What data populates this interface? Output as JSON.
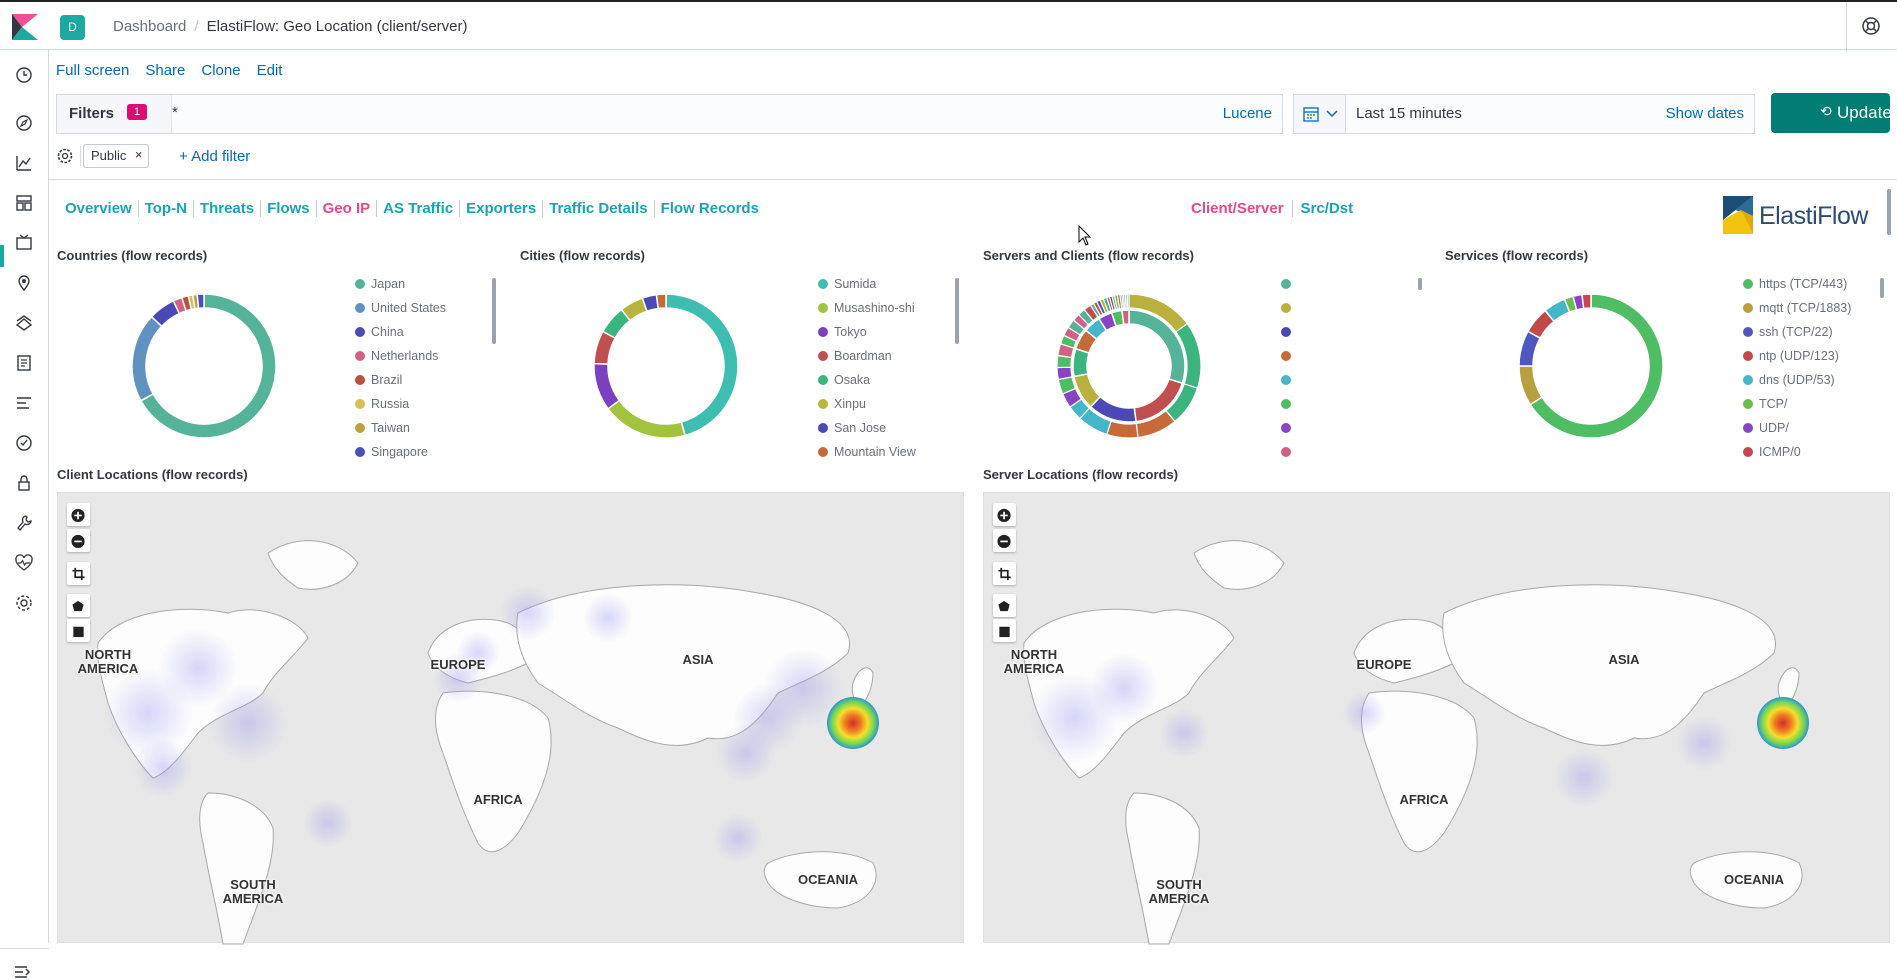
{
  "app": {
    "space_initial": "D"
  },
  "breadcrumb": {
    "parent": "Dashboard",
    "separator": "/",
    "current": "ElastiFlow: Geo Location (client/server)"
  },
  "top_actions": [
    "Full screen",
    "Share",
    "Clone",
    "Edit"
  ],
  "query": {
    "filters_label": "Filters",
    "filters_count": "1",
    "text": "*",
    "language": "Lucene"
  },
  "time": {
    "range": "Last 15 minutes",
    "show_dates": "Show dates"
  },
  "update_label": "Update",
  "filter_pill": {
    "label": "Public",
    "remove": "×"
  },
  "add_filter_label": "+ Add filter",
  "nav_tabs": [
    "Overview",
    "Top-N",
    "Threats",
    "Flows",
    "Geo IP",
    "AS Traffic",
    "Exporters",
    "Traffic Details",
    "Flow Records"
  ],
  "active_tab": "Geo IP",
  "view_tabs": [
    "Client/Server",
    "Src/Dst"
  ],
  "active_view": "Client/Server",
  "logo_text": "ElastiFlow",
  "panels": {
    "countries": {
      "title": "Countries (flow records)",
      "legend": [
        "Japan",
        "United States",
        "China",
        "Netherlands",
        "Brazil",
        "Russia",
        "Taiwan",
        "Singapore"
      ]
    },
    "cities": {
      "title": "Cities (flow records)",
      "legend": [
        "Sumida",
        "Musashino-shi",
        "Tokyo",
        "Boardman",
        "Osaka",
        "Xinpu",
        "San Jose",
        "Mountain View"
      ]
    },
    "servers_clients": {
      "title": "Servers and Clients (flow records)"
    },
    "services": {
      "title": "Services (flow records)",
      "legend": [
        "https (TCP/443)",
        "mqtt (TCP/1883)",
        "ssh (TCP/22)",
        "ntp (UDP/123)",
        "dns (UDP/53)",
        "TCP/",
        "UDP/",
        "ICMP/0"
      ]
    },
    "client_locations": {
      "title": "Client Locations (flow records)"
    },
    "server_locations": {
      "title": "Server Locations (flow records)"
    }
  },
  "map_regions": {
    "north_america": "NORTH AMERICA",
    "europe": "EUROPE",
    "asia": "ASIA",
    "africa": "AFRICA",
    "south_america": "SOUTH AMERICA",
    "oceania": "OCEANIA"
  },
  "colors": {
    "accent": "#1ba9a0",
    "link": "#006bb4",
    "active_tab": "#e8478b",
    "tab": "#17a5b0",
    "update_button": "#017d73",
    "badge": "#dd0a73",
    "legend_palette": [
      "#54b399",
      "#6092c0",
      "#4c49b6",
      "#d36086",
      "#bd4f3d",
      "#d6bf57",
      "#b9a440",
      "#4a4fb9"
    ],
    "city_palette": [
      "#3ebeb0",
      "#a3c33e",
      "#7b40c0",
      "#c05050",
      "#3ab580",
      "#b7b53e",
      "#4c49b6",
      "#c76a3a"
    ],
    "service_palette": [
      "#4ebd63",
      "#b9a03e",
      "#4e58c0",
      "#c04a46",
      "#43b6c7",
      "#6dbb48",
      "#8744c7",
      "#c74453"
    ]
  },
  "chart_data": [
    {
      "type": "pie",
      "title": "Countries (flow records)",
      "categories": [
        "Japan",
        "United States",
        "China",
        "Netherlands",
        "Brazil",
        "Russia",
        "Taiwan",
        "Singapore"
      ],
      "values": [
        67,
        20,
        6,
        2,
        1.5,
        1,
        1,
        1.5
      ]
    },
    {
      "type": "pie",
      "title": "Cities (flow records)",
      "categories": [
        "Sumida",
        "Musashino-shi",
        "Tokyo",
        "Boardman",
        "Osaka",
        "Xinpu",
        "San Jose",
        "Mountain View"
      ],
      "values": [
        43,
        18,
        10,
        7,
        6,
        5,
        3,
        2
      ]
    },
    {
      "type": "pie",
      "title": "Services (flow records)",
      "categories": [
        "https (TCP/443)",
        "mqtt (TCP/1883)",
        "ssh (TCP/22)",
        "ntp (UDP/123)",
        "dns (UDP/53)",
        "TCP/",
        "UDP/",
        "ICMP/0"
      ],
      "values": [
        66,
        9,
        8,
        6,
        5,
        2,
        2,
        2
      ]
    }
  ]
}
